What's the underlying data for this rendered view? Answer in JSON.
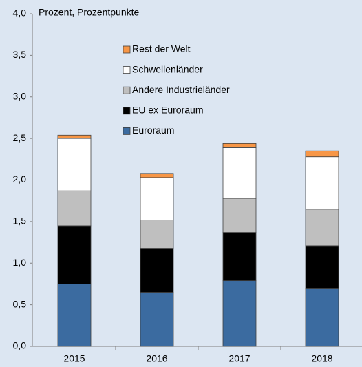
{
  "chart_data": {
    "type": "stacked-bar",
    "y_label": "Prozent, Prozentpunkte",
    "categories": [
      "2015",
      "2016",
      "2017",
      "2018"
    ],
    "series": [
      {
        "name": "Euroraum",
        "color": "#3b6ba0",
        "values": [
          0.75,
          0.65,
          0.79,
          0.7
        ]
      },
      {
        "name": "EU ex Euroraum",
        "color": "#000000",
        "values": [
          0.7,
          0.53,
          0.58,
          0.51
        ]
      },
      {
        "name": "Andere Industrieländer",
        "color": "#bfbfbf",
        "values": [
          0.42,
          0.34,
          0.41,
          0.44
        ]
      },
      {
        "name": "Schwellenländer",
        "color": "#ffffff",
        "values": [
          0.63,
          0.51,
          0.61,
          0.63
        ]
      },
      {
        "name": "Rest der Welt",
        "color": "#f79646",
        "values": [
          0.04,
          0.05,
          0.05,
          0.07
        ]
      }
    ],
    "ylim": [
      0,
      4
    ],
    "yticks": [
      {
        "value": 0,
        "label": "0,0"
      },
      {
        "value": 0.5,
        "label": "0,5"
      },
      {
        "value": 1,
        "label": "1,0"
      },
      {
        "value": 1.5,
        "label": "1,5"
      },
      {
        "value": 2,
        "label": "2,0"
      },
      {
        "value": 2.5,
        "label": "2,5"
      },
      {
        "value": 3,
        "label": "3,0"
      },
      {
        "value": 3.5,
        "label": "3,5"
      },
      {
        "value": 4,
        "label": "4,0"
      }
    ],
    "grid": false
  }
}
